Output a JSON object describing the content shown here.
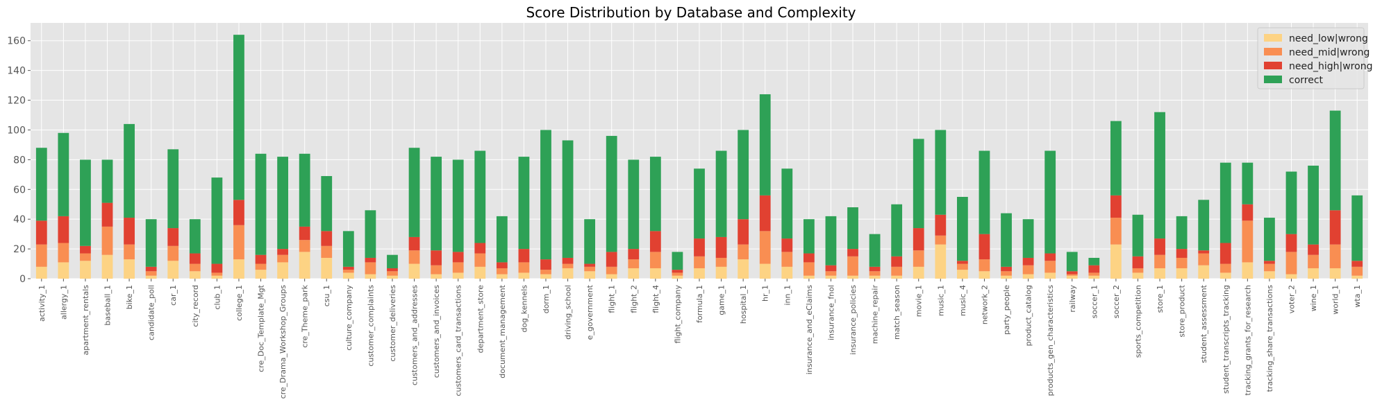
{
  "chart_data": {
    "type": "bar",
    "stacked": true,
    "title": "Score Distribution by Database and Complexity",
    "xlabel": "",
    "ylabel": "",
    "ylim": [
      0,
      172
    ],
    "yticks": [
      0,
      20,
      40,
      60,
      80,
      100,
      120,
      140,
      160
    ],
    "grid": true,
    "legend_position": "top-right",
    "categories": [
      "activity_1",
      "allergy_1",
      "apartment_rentals",
      "baseball_1",
      "bike_1",
      "candidate_poll",
      "car_1",
      "city_record",
      "club_1",
      "college_1",
      "cre_Doc_Template_Mgt",
      "cre_Drama_Workshop_Groups",
      "cre_Theme_park",
      "csu_1",
      "culture_company",
      "customer_complaints",
      "customer_deliveries",
      "customers_and_addresses",
      "customers_and_invoices",
      "customers_card_transactions",
      "department_store",
      "document_management",
      "dog_kennels",
      "dorm_1",
      "driving_school",
      "e_government",
      "flight_1",
      "flight_2",
      "flight_4",
      "flight_company",
      "formula_1",
      "game_1",
      "hospital_1",
      "hr_1",
      "inn_1",
      "insurance_and_eClaims",
      "insurance_fnol",
      "insurance_policies",
      "machine_repair",
      "match_season",
      "movie_1",
      "music_1",
      "music_4",
      "network_2",
      "party_people",
      "product_catalog",
      "products_gen_characteristics",
      "railway",
      "soccer_1",
      "soccer_2",
      "sports_competition",
      "store_1",
      "store_product",
      "student_assessment",
      "student_transcripts_tracking",
      "tracking_grants_for_research",
      "tracking_share_transactions",
      "voter_2",
      "wine_1",
      "world_1",
      "wta_1"
    ],
    "series": [
      {
        "name": "need_low|wrong",
        "color": "#fdd384",
        "values": [
          8,
          11,
          12,
          16,
          13,
          2,
          12,
          5,
          2,
          13,
          6,
          11,
          18,
          14,
          4,
          3,
          2,
          10,
          3,
          4,
          8,
          3,
          4,
          3,
          7,
          5,
          3,
          7,
          7,
          2,
          7,
          8,
          13,
          10,
          8,
          2,
          2,
          2,
          2,
          2,
          8,
          23,
          6,
          5,
          2,
          3,
          4,
          2,
          2,
          23,
          4,
          7,
          7,
          9,
          4,
          11,
          5,
          3,
          7,
          7,
          2
        ]
      },
      {
        "name": "need_mid|wrong",
        "color": "#f98e52",
        "values": [
          15,
          13,
          5,
          19,
          10,
          3,
          10,
          5,
          2,
          23,
          4,
          5,
          8,
          8,
          2,
          8,
          3,
          9,
          6,
          7,
          9,
          4,
          7,
          3,
          3,
          3,
          5,
          6,
          11,
          2,
          8,
          6,
          10,
          22,
          10,
          9,
          3,
          13,
          3,
          6,
          11,
          6,
          4,
          8,
          3,
          6,
          8,
          1,
          2,
          18,
          3,
          9,
          7,
          8,
          6,
          28,
          5,
          15,
          9,
          16,
          6
        ]
      },
      {
        "name": "need_high|wrong",
        "color": "#e14131",
        "values": [
          16,
          18,
          5,
          16,
          18,
          3,
          12,
          7,
          6,
          17,
          6,
          4,
          9,
          10,
          2,
          3,
          2,
          9,
          10,
          7,
          7,
          4,
          9,
          7,
          4,
          2,
          10,
          7,
          14,
          2,
          12,
          14,
          17,
          24,
          9,
          6,
          4,
          5,
          3,
          7,
          15,
          14,
          2,
          17,
          3,
          5,
          5,
          2,
          5,
          15,
          8,
          11,
          6,
          2,
          14,
          11,
          2,
          12,
          7,
          23,
          4
        ]
      },
      {
        "name": "correct",
        "color": "#2ea156",
        "values": [
          49,
          56,
          58,
          29,
          63,
          32,
          53,
          23,
          58,
          111,
          68,
          62,
          49,
          37,
          24,
          32,
          9,
          60,
          63,
          62,
          62,
          31,
          62,
          87,
          79,
          30,
          78,
          60,
          50,
          12,
          47,
          58,
          60,
          68,
          47,
          23,
          33,
          28,
          22,
          35,
          60,
          57,
          43,
          56,
          36,
          26,
          69,
          13,
          5,
          50,
          28,
          85,
          22,
          34,
          54,
          28,
          29,
          42,
          53,
          67,
          44
        ]
      }
    ]
  }
}
